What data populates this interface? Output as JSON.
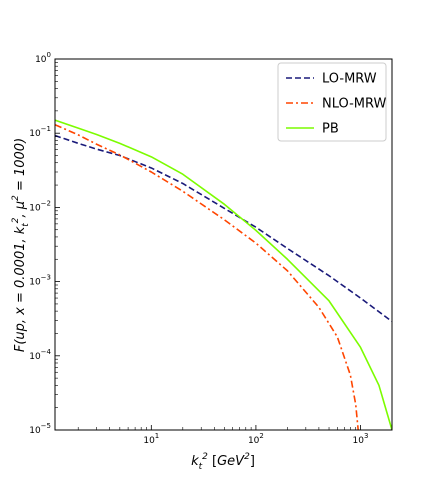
{
  "chart_data": {
    "type": "line",
    "title": "",
    "xlabel": "k_t^2 [GeV^2]",
    "ylabel": "F(up, x = 0.0001, k_t^2, μ^2 = 1000)",
    "xscale": "log",
    "yscale": "log",
    "xlim": [
      1.2,
      2000
    ],
    "ylim": [
      1e-05,
      1
    ],
    "x_ticks": [
      {
        "value": 10,
        "base": "10",
        "exp": "1"
      },
      {
        "value": 100,
        "base": "10",
        "exp": "2"
      },
      {
        "value": 1000,
        "base": "10",
        "exp": "3"
      }
    ],
    "y_ticks": [
      {
        "value": 1,
        "base": "10",
        "exp": "0"
      },
      {
        "value": 0.1,
        "base": "10",
        "exp": "−1"
      },
      {
        "value": 0.01,
        "base": "10",
        "exp": "−2"
      },
      {
        "value": 0.001,
        "base": "10",
        "exp": "−3"
      },
      {
        "value": 0.0001,
        "base": "10",
        "exp": "−4"
      },
      {
        "value": 1e-05,
        "base": "10",
        "exp": "−5"
      }
    ],
    "grid": false,
    "legend_position": "top-right",
    "series": [
      {
        "name": "LO-MRW",
        "color": "#1a1a7a",
        "dash": "dashed",
        "x": [
          1.2,
          2,
          3,
          5,
          10,
          20,
          50,
          100,
          200,
          500,
          1000,
          2000
        ],
        "y": [
          0.093,
          0.073,
          0.061,
          0.05,
          0.034,
          0.021,
          0.0097,
          0.0054,
          0.0028,
          0.0012,
          0.0006,
          0.00029
        ]
      },
      {
        "name": "NLO-MRW",
        "color": "#ff4500",
        "dash": "dashdot",
        "x": [
          1.2,
          2,
          3,
          5,
          10,
          20,
          50,
          100,
          200,
          400,
          600,
          800,
          900,
          950
        ],
        "y": [
          0.13,
          0.095,
          0.071,
          0.051,
          0.03,
          0.0165,
          0.0068,
          0.0033,
          0.0014,
          0.00045,
          0.00018,
          5.5e-05,
          2.2e-05,
          1e-05
        ]
      },
      {
        "name": "PB",
        "color": "#7cfc00",
        "dash": "solid",
        "x": [
          1.2,
          2,
          3,
          5,
          10,
          20,
          50,
          100,
          200,
          500,
          1000,
          1500,
          2000
        ],
        "y": [
          0.15,
          0.117,
          0.096,
          0.073,
          0.048,
          0.028,
          0.011,
          0.0049,
          0.002,
          0.00055,
          0.00013,
          4e-05,
          1e-05
        ]
      }
    ]
  }
}
